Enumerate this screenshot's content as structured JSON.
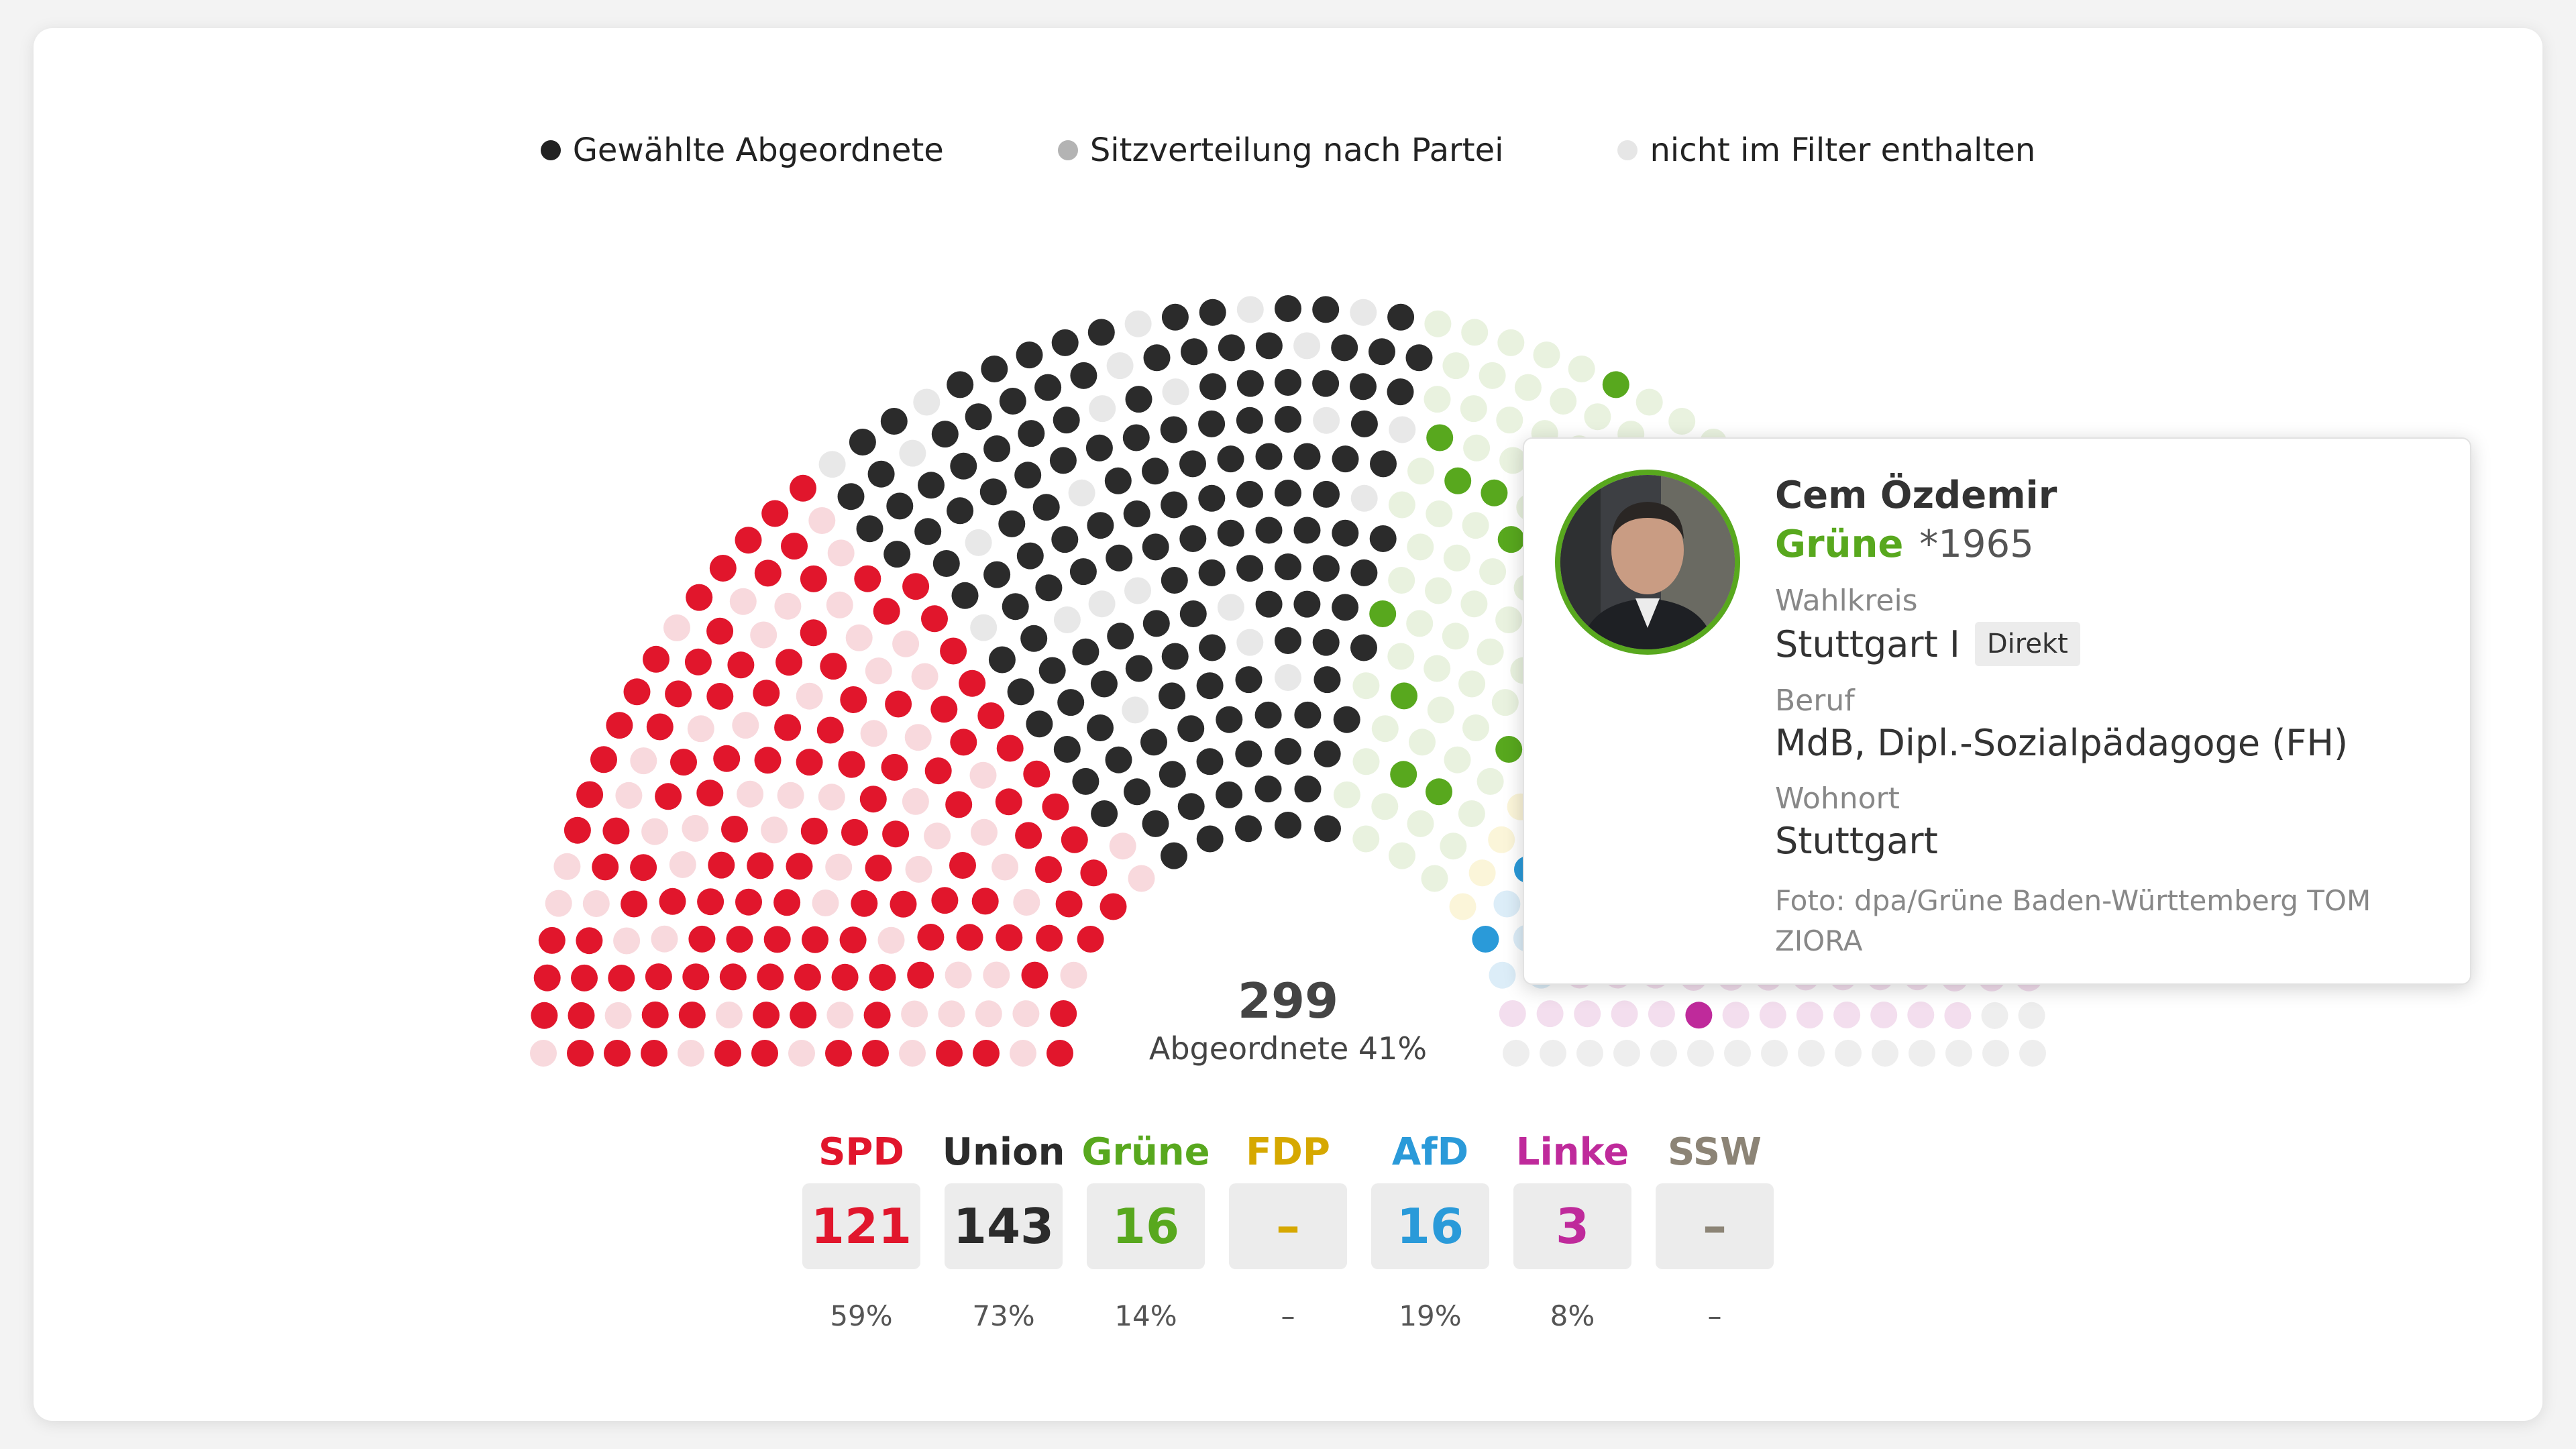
{
  "legend": {
    "items": [
      {
        "label": "Gewählte Abgeordnete",
        "color": "#222222"
      },
      {
        "label": "Sitzverteilung nach Partei",
        "color": "#b3b3b3"
      },
      {
        "label": "nicht im Filter enthalten",
        "color": "#e6e6e6"
      }
    ]
  },
  "center": {
    "count": "299",
    "label": "Abgeordnete 41%"
  },
  "parties": [
    {
      "name": "SPD",
      "seats": "121",
      "pct": "59%",
      "color": "#e1162c"
    },
    {
      "name": "Union",
      "seats": "143",
      "pct": "73%",
      "color": "#2b2b2b"
    },
    {
      "name": "Grüne",
      "seats": "16",
      "pct": "14%",
      "color": "#58a81e"
    },
    {
      "name": "FDP",
      "seats": "–",
      "pct": "–",
      "color": "#d6a800"
    },
    {
      "name": "AfD",
      "seats": "16",
      "pct": "19%",
      "color": "#2a9ad9"
    },
    {
      "name": "Linke",
      "seats": "3",
      "pct": "8%",
      "color": "#bf2a9b"
    },
    {
      "name": "SSW",
      "seats": "–",
      "pct": "–",
      "color": "#8c8476"
    }
  ],
  "tooltip": {
    "name": "Cem Özdemir",
    "party": "Grüne",
    "birth": "*1965",
    "wahlkreis_label": "Wahlkreis",
    "wahlkreis": "Stuttgart I",
    "badge": "Direkt",
    "beruf_label": "Beruf",
    "beruf": "MdB, Dipl.-Sozialpädagoge (FH)",
    "wohnort_label": "Wohnort",
    "wohnort": "Stuttgart",
    "photo_credit": "Foto: dpa/Grüne Baden-Württemberg TOM ZIORA"
  },
  "chart_data": {
    "type": "hemicycle",
    "title": "",
    "segments": [
      {
        "party": "SPD",
        "elected": 121,
        "color": "#e1162c",
        "faded_color": "#f8d9dd"
      },
      {
        "party": "Union",
        "elected": 143,
        "color": "#2b2b2b",
        "faded_color": "#e8e8e8"
      },
      {
        "party": "Grüne",
        "elected": 16,
        "color": "#58a81e",
        "faded_color": "#e9f2df"
      },
      {
        "party": "FDP",
        "elected": 0,
        "color": "#d6a800",
        "faded_color": "#fbf5d9"
      },
      {
        "party": "AfD",
        "elected": 16,
        "color": "#2a9ad9",
        "faded_color": "#dcedf8"
      },
      {
        "party": "Linke",
        "elected": 3,
        "color": "#bf2a9b",
        "faded_color": "#f3deee"
      },
      {
        "party": "SSW",
        "elected": 0,
        "color": "#8c8476",
        "faded_color": "#eeeeee"
      }
    ],
    "total_elected": 299
  }
}
